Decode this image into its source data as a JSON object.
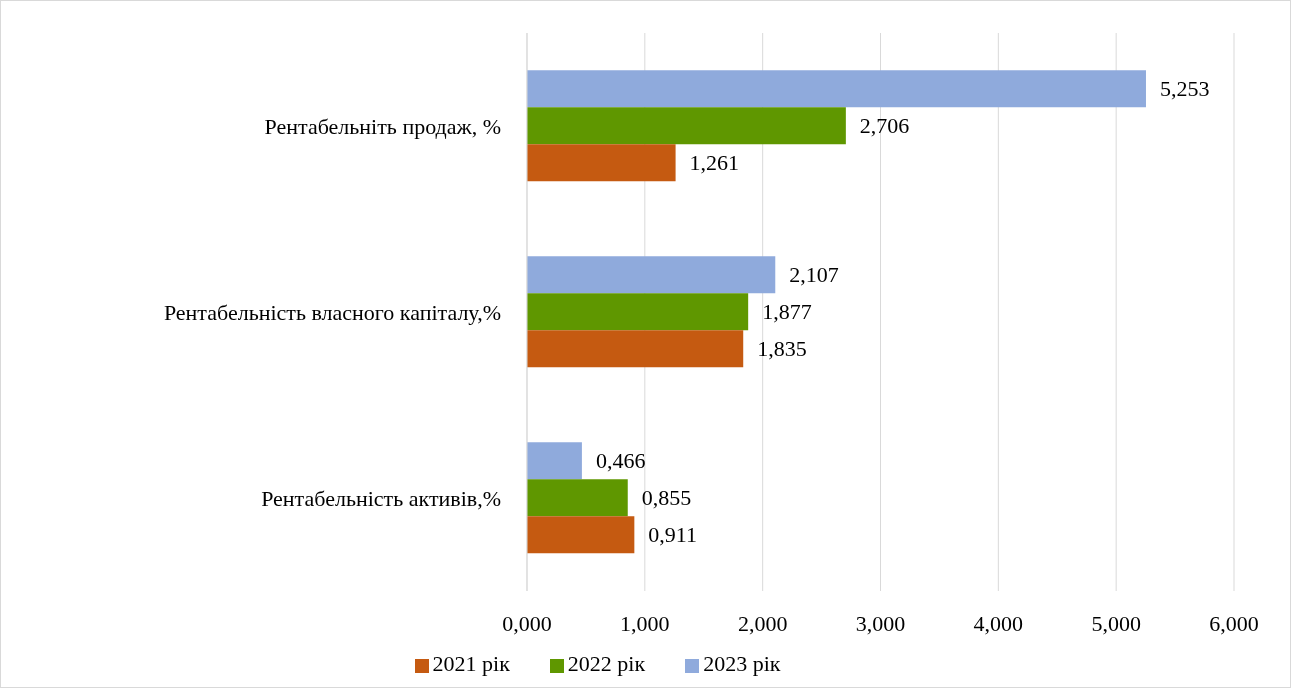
{
  "chart_data": {
    "type": "bar",
    "orientation": "horizontal",
    "categories": [
      "Рентабельніть  продаж, %",
      "Рентабельність  власного капіталу,%",
      "Рентабельність  активів,%"
    ],
    "series": [
      {
        "name": "2023 рік",
        "color": "#8faadc",
        "values": [
          5.253,
          2.107,
          0.466
        ],
        "value_labels": [
          "5,253",
          "2,107",
          "0,466"
        ]
      },
      {
        "name": "2022 рік",
        "color": "#5f9700",
        "values": [
          2.706,
          1.877,
          0.855
        ],
        "value_labels": [
          "2,706",
          "1,877",
          "0,855"
        ]
      },
      {
        "name": "2021 рік",
        "color": "#c55a11",
        "values": [
          1.261,
          1.835,
          0.911
        ],
        "value_labels": [
          "1,261",
          "1,835",
          "0,911"
        ]
      }
    ],
    "xlim": [
      0,
      6
    ],
    "xticks": [
      {
        "value": 0,
        "label": "0,000"
      },
      {
        "value": 1,
        "label": "1,000"
      },
      {
        "value": 2,
        "label": "2,000"
      },
      {
        "value": 3,
        "label": "3,000"
      },
      {
        "value": 4,
        "label": "4,000"
      },
      {
        "value": 5,
        "label": "5,000"
      },
      {
        "value": 6,
        "label": "6,000"
      }
    ],
    "grid": "x",
    "legend": "bottom"
  }
}
